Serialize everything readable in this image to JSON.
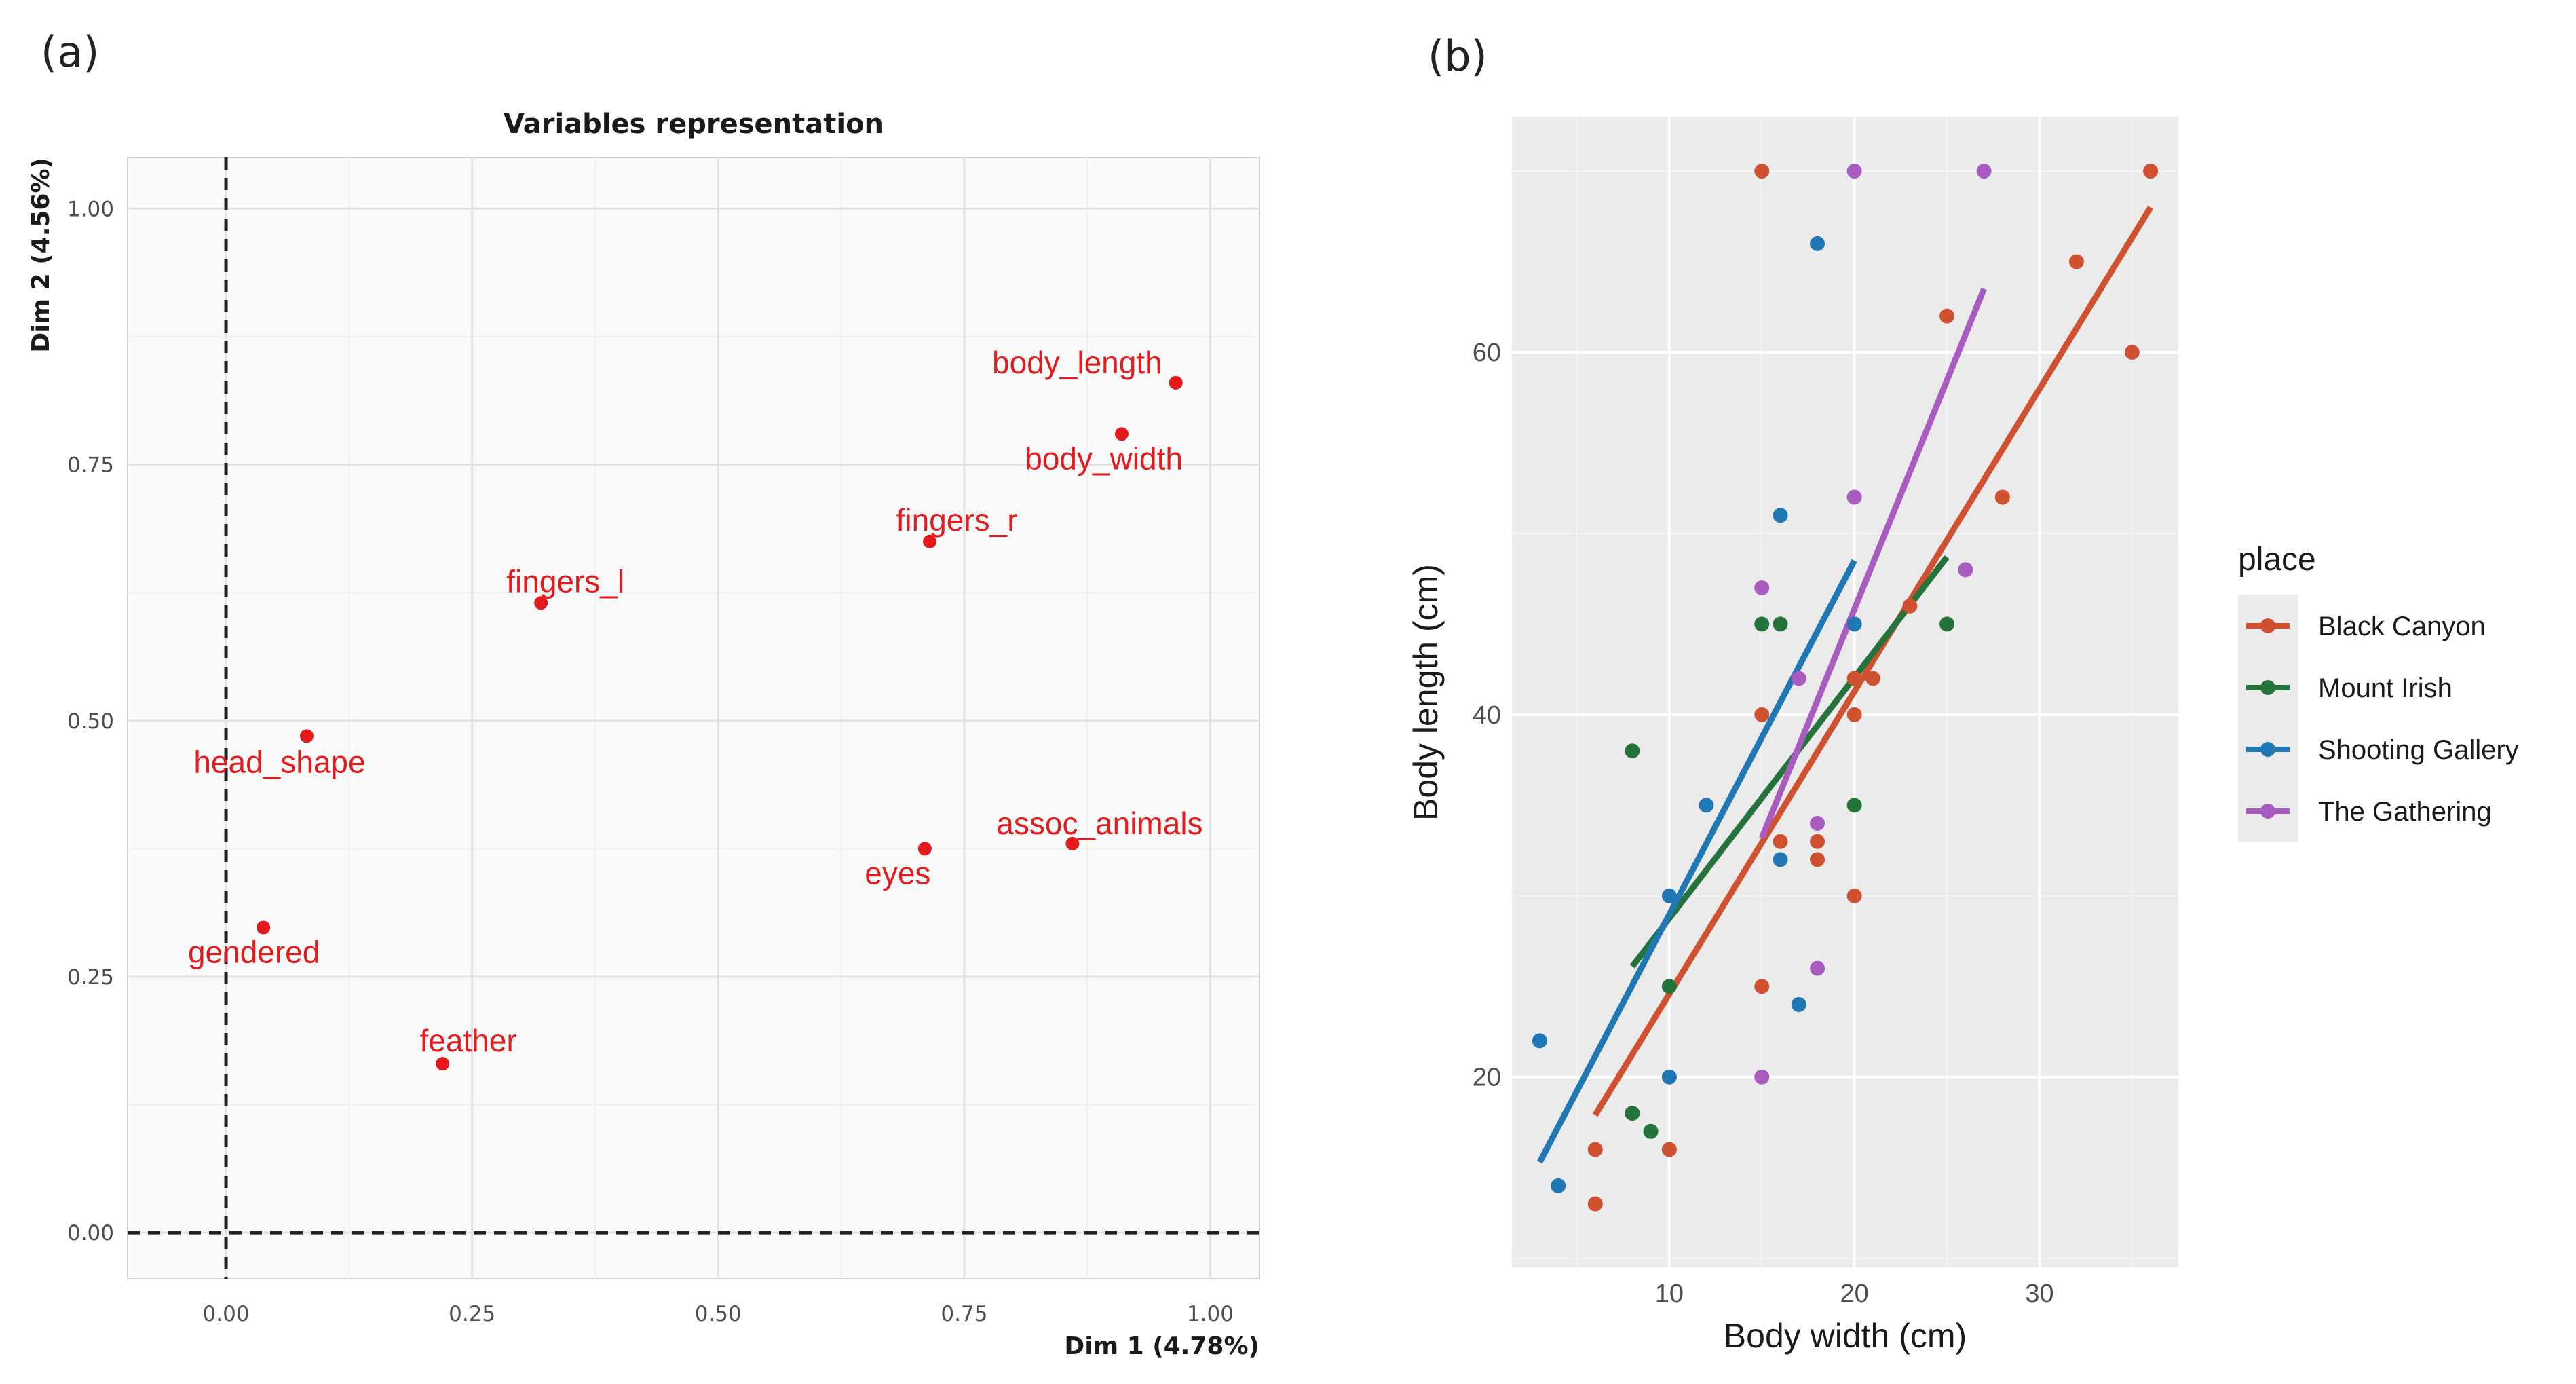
{
  "chart_data": [
    {
      "panel": "(a)",
      "type": "scatter",
      "title": "Variables representation",
      "xlabel": "Dim 1 (4.78%)",
      "ylabel": "Dim 2 (4.56%)",
      "xlim": [
        -0.1,
        1.05
      ],
      "ylim": [
        -0.045,
        1.05
      ],
      "xticks": [
        0.0,
        0.25,
        0.5,
        0.75,
        1.0
      ],
      "xtick_labels": [
        "0.00",
        "0.25",
        "0.50",
        "0.75",
        "1.00"
      ],
      "yticks": [
        0.0,
        0.25,
        0.5,
        0.75,
        1.0
      ],
      "ytick_labels": [
        "0.00",
        "0.25",
        "0.50",
        "0.75",
        "1.00"
      ],
      "reference_lines": {
        "x": 0,
        "y": 0,
        "style": "dashed"
      },
      "color": "#e41a1c",
      "points": [
        {
          "label": "body_length",
          "x": 0.965,
          "y": 0.83
        },
        {
          "label": "body_width",
          "x": 0.91,
          "y": 0.78
        },
        {
          "label": "fingers_r",
          "x": 0.715,
          "y": 0.675
        },
        {
          "label": "fingers_l",
          "x": 0.32,
          "y": 0.615
        },
        {
          "label": "head_shape",
          "x": 0.082,
          "y": 0.485
        },
        {
          "label": "assoc_animals",
          "x": 0.86,
          "y": 0.38
        },
        {
          "label": "eyes",
          "x": 0.71,
          "y": 0.375
        },
        {
          "label": "gendered",
          "x": 0.038,
          "y": 0.298
        },
        {
          "label": "feather",
          "x": 0.22,
          "y": 0.165
        }
      ]
    },
    {
      "panel": "(b)",
      "type": "scatter",
      "xlabel": "Body width (cm)",
      "ylabel": "Body length (cm)",
      "xlim": [
        1.5,
        37.5
      ],
      "ylim": [
        9.5,
        73
      ],
      "xticks": [
        10,
        20,
        30
      ],
      "yticks": [
        20,
        40,
        60
      ],
      "legend_title": "place",
      "legend_position": "right",
      "series": [
        {
          "name": "Black Canyon",
          "color": "#d0512f",
          "points": [
            [
              15,
              70
            ],
            [
              36,
              70
            ],
            [
              32,
              65
            ],
            [
              25,
              62
            ],
            [
              35,
              60
            ],
            [
              28,
              52
            ],
            [
              23,
              46
            ],
            [
              21,
              42
            ],
            [
              20,
              42
            ],
            [
              15,
              40
            ],
            [
              20,
              40
            ],
            [
              16,
              33
            ],
            [
              18,
              33
            ],
            [
              18,
              32
            ],
            [
              20,
              30
            ],
            [
              15,
              25
            ],
            [
              6,
              16
            ],
            [
              10,
              16
            ],
            [
              6,
              13
            ]
          ],
          "fit": [
            [
              6,
              17.9
            ],
            [
              36,
              68
            ]
          ]
        },
        {
          "name": "Mount Irish",
          "color": "#23733b",
          "points": [
            [
              15,
              45
            ],
            [
              16,
              45
            ],
            [
              25,
              45
            ],
            [
              8,
              38
            ],
            [
              20,
              35
            ],
            [
              10,
              25
            ],
            [
              8,
              18
            ],
            [
              9,
              17
            ]
          ],
          "fit": [
            [
              8,
              26.1
            ],
            [
              25,
              48.7
            ]
          ]
        },
        {
          "name": "Shooting Gallery",
          "color": "#1f78b4",
          "points": [
            [
              18,
              66
            ],
            [
              16,
              51
            ],
            [
              20,
              45
            ],
            [
              12,
              35
            ],
            [
              10,
              30
            ],
            [
              16,
              32
            ],
            [
              17,
              24
            ],
            [
              3,
              22
            ],
            [
              10,
              20
            ],
            [
              4,
              14
            ]
          ],
          "fit": [
            [
              3,
              15.3
            ],
            [
              20,
              48.5
            ]
          ]
        },
        {
          "name": "The Gathering",
          "color": "#a95cbf",
          "points": [
            [
              20,
              70
            ],
            [
              27,
              70
            ],
            [
              20,
              52
            ],
            [
              26,
              48
            ],
            [
              15,
              47
            ],
            [
              17,
              42
            ],
            [
              18,
              34
            ],
            [
              18,
              26
            ],
            [
              15,
              20
            ]
          ],
          "fit": [
            [
              15,
              33.2
            ],
            [
              27,
              63.5
            ]
          ]
        }
      ]
    }
  ]
}
